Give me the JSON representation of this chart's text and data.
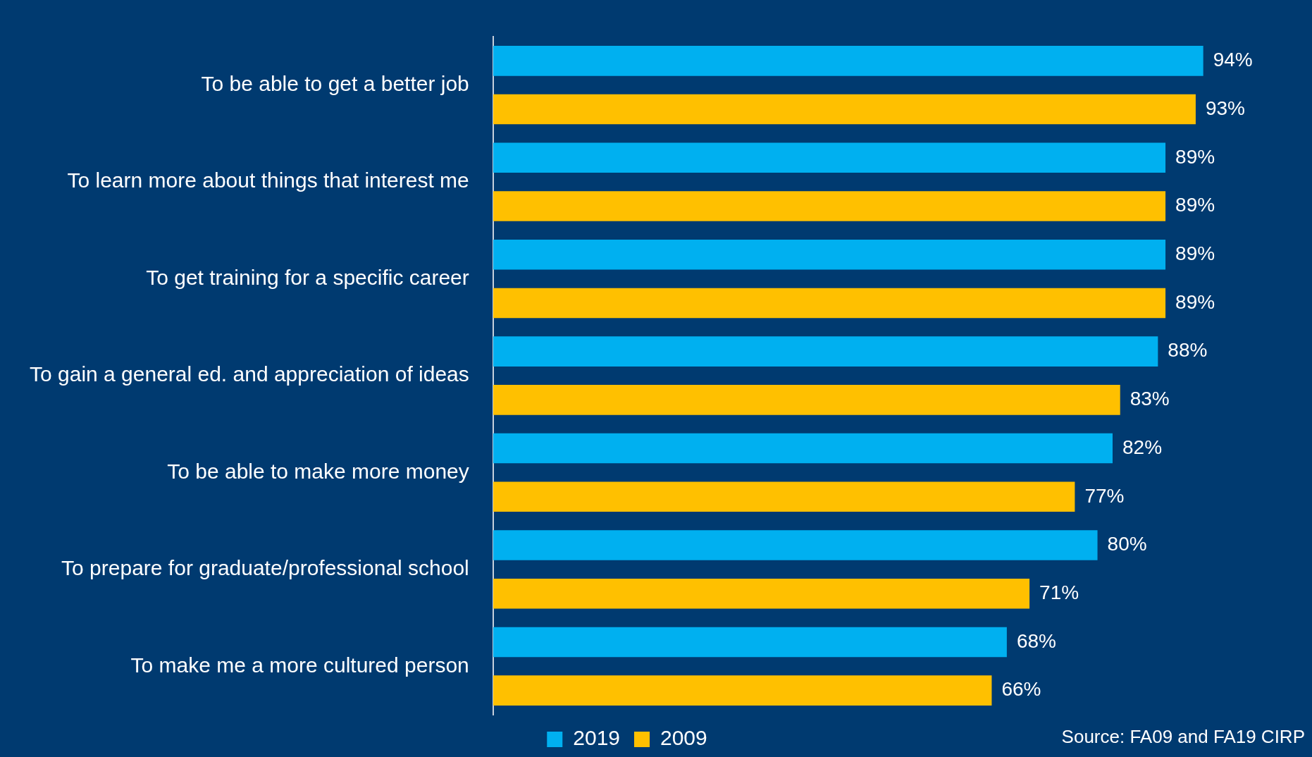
{
  "chart_data": {
    "type": "bar",
    "orientation": "horizontal",
    "categories": [
      "To be able to get a better job",
      "To learn more about things that interest me",
      "To get training for a specific career",
      "To gain a general ed. and appreciation of ideas",
      "To be able to make more money",
      "To prepare for graduate/professional school",
      "To make me a more cultured person"
    ],
    "series": [
      {
        "name": "2019",
        "color": "#00b0f0",
        "values": [
          94,
          89,
          89,
          88,
          82,
          80,
          68
        ],
        "value_labels": [
          "94%",
          "89%",
          "89%",
          "88%",
          "82%",
          "80%",
          "68%"
        ]
      },
      {
        "name": "2009",
        "color": "#ffc000",
        "values": [
          93,
          89,
          89,
          83,
          77,
          71,
          66
        ],
        "value_labels": [
          "93%",
          "89%",
          "89%",
          "83%",
          "77%",
          "71%",
          "66%"
        ]
      }
    ],
    "legend": "bottom",
    "grid": false,
    "tick_labels": "y",
    "annotations": [
      "Source: FA09 and FA19 CIRP"
    ]
  }
}
